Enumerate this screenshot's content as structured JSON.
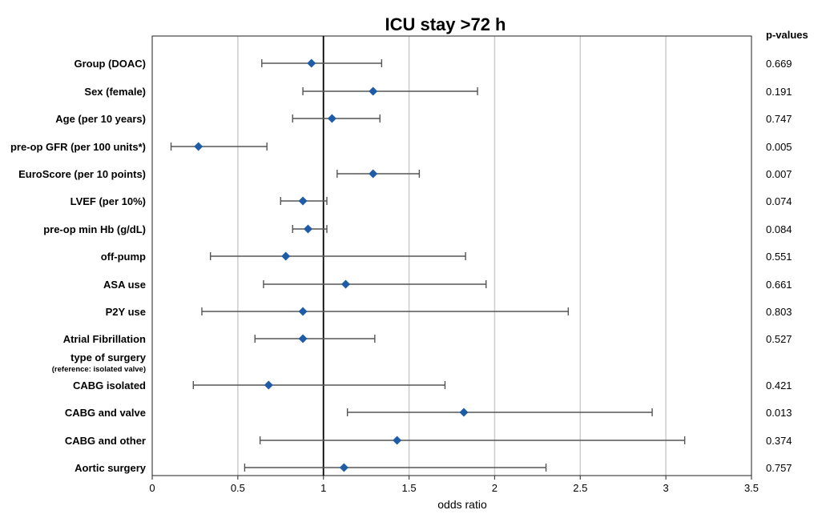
{
  "chart_data": {
    "type": "forest",
    "title": "ICU stay >72 h",
    "xlabel": "odds ratio",
    "pvalue_header": "p-values",
    "xlim": [
      0,
      3.5
    ],
    "xticks": [
      0,
      0.5,
      1,
      1.5,
      2,
      2.5,
      3,
      3.5
    ],
    "xtick_labels": [
      "0",
      "0.5",
      "1",
      "1.5",
      "2",
      "2.5",
      "3",
      "3.5"
    ],
    "reference_line": 1,
    "grid": "vertical",
    "marker_color": "#1f5ca8",
    "rows": [
      {
        "label": "Group (DOAC)",
        "or": 0.93,
        "lo": 0.64,
        "hi": 1.34,
        "p": "0.669"
      },
      {
        "label": "Sex (female)",
        "or": 1.29,
        "lo": 0.88,
        "hi": 1.9,
        "p": "0.191"
      },
      {
        "label": "Age (per 10 years)",
        "or": 1.05,
        "lo": 0.82,
        "hi": 1.33,
        "p": "0.747"
      },
      {
        "label": "pre-op GFR (per 100 units*)",
        "or": 0.27,
        "lo": 0.11,
        "hi": 0.67,
        "p": "0.005"
      },
      {
        "label": "EuroScore (per 10 points)",
        "or": 1.29,
        "lo": 1.08,
        "hi": 1.56,
        "p": "0.007"
      },
      {
        "label": "LVEF (per 10%)",
        "or": 0.88,
        "lo": 0.75,
        "hi": 1.02,
        "p": "0.074"
      },
      {
        "label": "pre-op min Hb (g/dL)",
        "or": 0.91,
        "lo": 0.82,
        "hi": 1.02,
        "p": "0.084"
      },
      {
        "label": "off-pump",
        "or": 0.78,
        "lo": 0.34,
        "hi": 1.83,
        "p": "0.551"
      },
      {
        "label": "ASA use",
        "or": 1.13,
        "lo": 0.65,
        "hi": 1.95,
        "p": "0.661"
      },
      {
        "label": "P2Y use",
        "or": 0.88,
        "lo": 0.29,
        "hi": 2.43,
        "p": "0.803"
      },
      {
        "label": "Atrial Fibrillation",
        "or": 0.88,
        "lo": 0.6,
        "hi": 1.3,
        "p": "0.527"
      },
      {
        "label": "type of surgery",
        "sublabel": "(reference: isolated valve)",
        "header": true
      },
      {
        "label": "CABG isolated",
        "or": 0.68,
        "lo": 0.24,
        "hi": 1.71,
        "p": "0.421"
      },
      {
        "label": "CABG and valve",
        "or": 1.82,
        "lo": 1.14,
        "hi": 2.92,
        "p": "0.013"
      },
      {
        "label": "CABG and other",
        "or": 1.43,
        "lo": 0.63,
        "hi": 3.11,
        "p": "0.374"
      },
      {
        "label": "Aortic surgery",
        "or": 1.12,
        "lo": 0.54,
        "hi": 2.3,
        "p": "0.757"
      }
    ]
  }
}
